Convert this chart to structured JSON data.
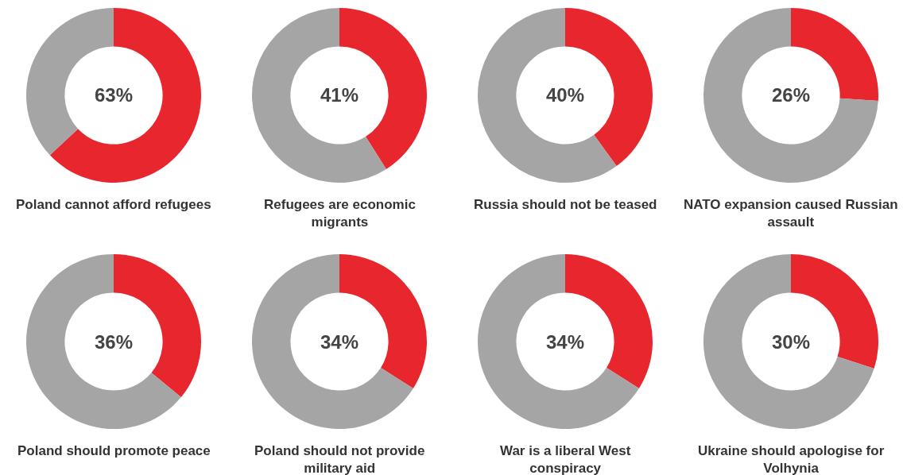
{
  "chart_data": [
    {
      "type": "donut",
      "title": "Poland cannot afford refugees",
      "categories": [
        null,
        null
      ],
      "values": [
        63,
        37
      ],
      "colors": [
        "#e8262e",
        "#a5a5a5"
      ],
      "annotations": [
        "63%"
      ],
      "legend": false
    },
    {
      "type": "donut",
      "title": "Refugees are economic migrants",
      "categories": [
        null,
        null
      ],
      "values": [
        41,
        59
      ],
      "colors": [
        "#e8262e",
        "#a5a5a5"
      ],
      "annotations": [
        "41%"
      ],
      "legend": false
    },
    {
      "type": "donut",
      "title": "Russia should not be teased",
      "categories": [
        null,
        null
      ],
      "values": [
        40,
        60
      ],
      "colors": [
        "#e8262e",
        "#a5a5a5"
      ],
      "annotations": [
        "40%"
      ],
      "legend": false
    },
    {
      "type": "donut",
      "title": "NATO expansion caused Russian assault",
      "categories": [
        null,
        null
      ],
      "values": [
        26,
        74
      ],
      "colors": [
        "#e8262e",
        "#a5a5a5"
      ],
      "annotations": [
        "26%"
      ],
      "legend": false
    },
    {
      "type": "donut",
      "title": "Poland should promote peace",
      "categories": [
        null,
        null
      ],
      "values": [
        36,
        64
      ],
      "colors": [
        "#e8262e",
        "#a5a5a5"
      ],
      "annotations": [
        "36%"
      ],
      "legend": false
    },
    {
      "type": "donut",
      "title": "Poland should not provide military aid",
      "categories": [
        null,
        null
      ],
      "values": [
        34,
        66
      ],
      "colors": [
        "#e8262e",
        "#a5a5a5"
      ],
      "annotations": [
        "34%"
      ],
      "legend": false
    },
    {
      "type": "donut",
      "title": "War is a liberal West conspiracy",
      "categories": [
        null,
        null
      ],
      "values": [
        34,
        66
      ],
      "colors": [
        "#e8262e",
        "#a5a5a5"
      ],
      "annotations": [
        "34%"
      ],
      "legend": false
    },
    {
      "type": "donut",
      "title": "Ukraine should apologise for Volhynia",
      "categories": [
        null,
        null
      ],
      "values": [
        30,
        70
      ],
      "colors": [
        "#e8262e",
        "#a5a5a5"
      ],
      "annotations": [
        "30%"
      ],
      "legend": false
    }
  ]
}
